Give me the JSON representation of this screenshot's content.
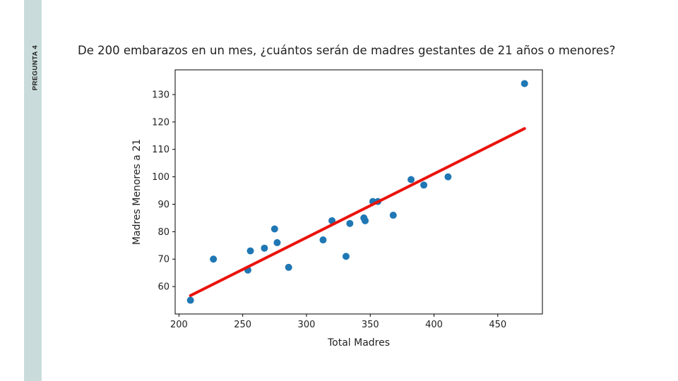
{
  "slide": {
    "side_label": "PREGUNTA 4",
    "question": "De 200 embarazos en un mes, ¿cuántos serán de madres gestantes de 21 años o menores?"
  },
  "chart_data": {
    "type": "scatter",
    "title": "",
    "xlabel": "Total Madres",
    "ylabel": "Madres Menores a 21",
    "xlim": [
      197,
      485
    ],
    "ylim": [
      50,
      139
    ],
    "xticks": [
      200,
      250,
      300,
      350,
      400,
      450
    ],
    "yticks": [
      60,
      70,
      80,
      90,
      100,
      110,
      120,
      130
    ],
    "grid": false,
    "point_color": "#1f77b4",
    "line_color": "#e8140c",
    "points": [
      {
        "x": 209,
        "y": 55
      },
      {
        "x": 227,
        "y": 70
      },
      {
        "x": 254,
        "y": 66
      },
      {
        "x": 256,
        "y": 73
      },
      {
        "x": 267,
        "y": 74
      },
      {
        "x": 275,
        "y": 81
      },
      {
        "x": 277,
        "y": 76
      },
      {
        "x": 286,
        "y": 67
      },
      {
        "x": 313,
        "y": 77
      },
      {
        "x": 320,
        "y": 84
      },
      {
        "x": 331,
        "y": 71
      },
      {
        "x": 334,
        "y": 83
      },
      {
        "x": 345,
        "y": 85
      },
      {
        "x": 346,
        "y": 84
      },
      {
        "x": 352,
        "y": 91
      },
      {
        "x": 356,
        "y": 91
      },
      {
        "x": 368,
        "y": 86
      },
      {
        "x": 382,
        "y": 99
      },
      {
        "x": 392,
        "y": 97
      },
      {
        "x": 411,
        "y": 100
      },
      {
        "x": 471,
        "y": 134
      }
    ],
    "fit_line": {
      "x": [
        209,
        471
      ],
      "y": [
        56.7,
        117.6
      ]
    }
  }
}
